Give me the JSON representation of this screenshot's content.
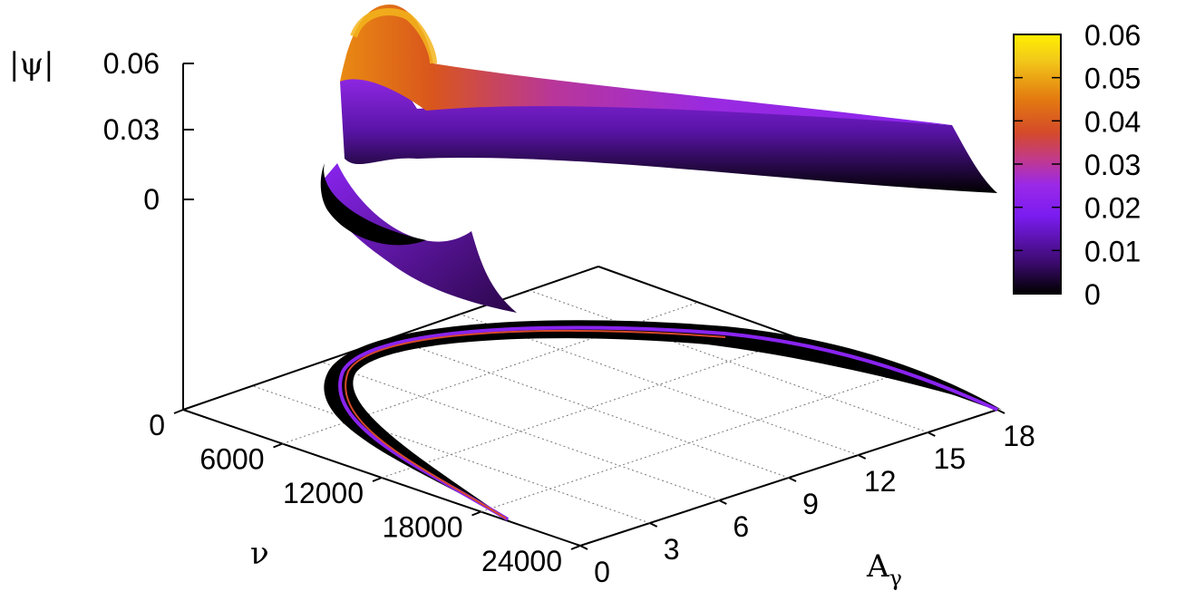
{
  "chart_data": {
    "type": "surface3d",
    "z_axis": {
      "label": "|ψ|",
      "ticks": [
        "0.06",
        "0.03",
        "0"
      ]
    },
    "nu_axis": {
      "label": "ν",
      "ticks": [
        "0",
        "6000",
        "12000",
        "18000",
        "24000"
      ],
      "range": [
        0,
        24000
      ]
    },
    "a_axis": {
      "label": "A",
      "label_sub": "γ",
      "ticks": [
        "0",
        "3",
        "6",
        "9",
        "12",
        "15",
        "18"
      ],
      "range": [
        0,
        18
      ]
    },
    "colorbar": {
      "ticks": [
        "0.06",
        "0.05",
        "0.04",
        "0.03",
        "0.02",
        "0.01",
        "0"
      ],
      "range": [
        0,
        0.06
      ],
      "colors": [
        "#000000",
        "#3c0a6e",
        "#7a1cf0",
        "#9b29e8",
        "#c23a8a",
        "#d44a2a",
        "#e37a10",
        "#f2c81a",
        "#fff000"
      ]
    },
    "grid": true,
    "ridge": {
      "description_points": [
        {
          "A": 17.5,
          "nu": 3500,
          "psi_max": 0.018
        },
        {
          "A": 12,
          "nu": 3000,
          "psi_max": 0.024
        },
        {
          "A": 6,
          "nu": 2800,
          "psi_max": 0.03
        },
        {
          "A": 1.5,
          "nu": 6000,
          "psi_max": 0.045
        },
        {
          "A": 0.6,
          "nu": 9000,
          "psi_max": 0.06
        },
        {
          "A": 2,
          "nu": 14000,
          "psi_max": 0.03
        },
        {
          "A": 5,
          "nu": 22000,
          "psi_max": 0.015
        }
      ]
    }
  }
}
